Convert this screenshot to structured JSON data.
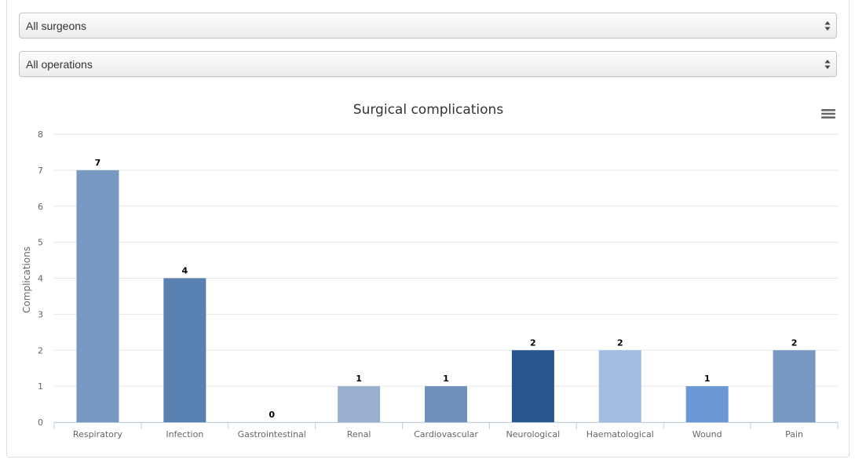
{
  "filters": {
    "surgeon_select": "All surgeons",
    "operation_select": "All operations"
  },
  "icons": {
    "select_arrows": "up-down-caret-icon",
    "chart_menu": "hamburger-menu-icon"
  },
  "colors": {
    "gridline": "#e6e6e6",
    "axis_text": "#666666",
    "title_text": "#333333"
  },
  "chart_data": {
    "type": "bar",
    "title": "Surgical complications",
    "xlabel": "",
    "ylabel": "Complications",
    "ylim": [
      0,
      8
    ],
    "yticks": [
      0,
      1,
      2,
      3,
      4,
      5,
      6,
      7,
      8
    ],
    "grid": true,
    "legend": "none",
    "categories": [
      "Respiratory",
      "Infection",
      "Gastrointestinal",
      "Renal",
      "Cardiovascular",
      "Neurological",
      "Haematological",
      "Wound",
      "Pain"
    ],
    "values": [
      7,
      4,
      0,
      1,
      1,
      2,
      2,
      1,
      2
    ],
    "bar_colors": [
      "#7799c2",
      "#5880b0",
      "#6b8bbf",
      "#99afd0",
      "#6f8fbc",
      "#2a5690",
      "#a2bce2",
      "#6b98d4",
      "#7799c2"
    ],
    "data_labels": true
  }
}
